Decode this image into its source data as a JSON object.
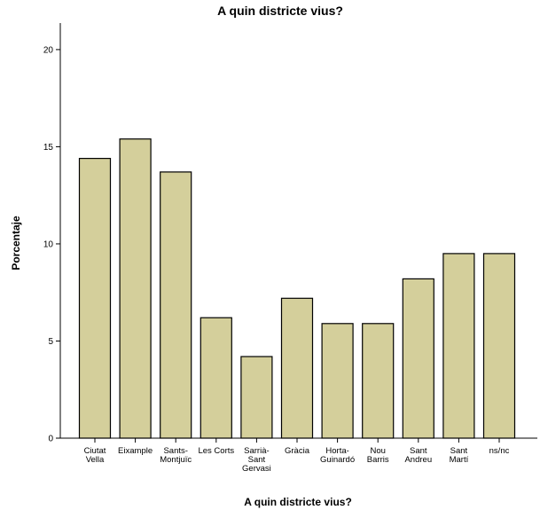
{
  "chart_data": {
    "type": "bar",
    "title": "A quin districte vius?",
    "xlabel": "A quin districte vius?",
    "ylabel": "Porcentaje",
    "categories": [
      [
        "Ciutat",
        "Vella"
      ],
      [
        "Eixample"
      ],
      [
        "Sants-",
        "Montjuïc"
      ],
      [
        "Les Corts"
      ],
      [
        "Sarrià-",
        "Sant",
        "Gervasi"
      ],
      [
        "Gràcia"
      ],
      [
        "Horta-",
        "Guinardó"
      ],
      [
        "Nou",
        "Barris"
      ],
      [
        "Sant",
        "Andreu"
      ],
      [
        "Sant",
        "Martí"
      ],
      [
        "ns/nc"
      ]
    ],
    "values": [
      14.4,
      15.4,
      13.7,
      6.2,
      4.2,
      7.2,
      5.9,
      5.9,
      8.2,
      9.5,
      9.5
    ],
    "ylim": [
      0,
      21
    ],
    "yticks": [
      0,
      5,
      10,
      15,
      20
    ],
    "grid": false,
    "bar_color": "#d4cf9b",
    "bar_edge_color": "#000000"
  }
}
